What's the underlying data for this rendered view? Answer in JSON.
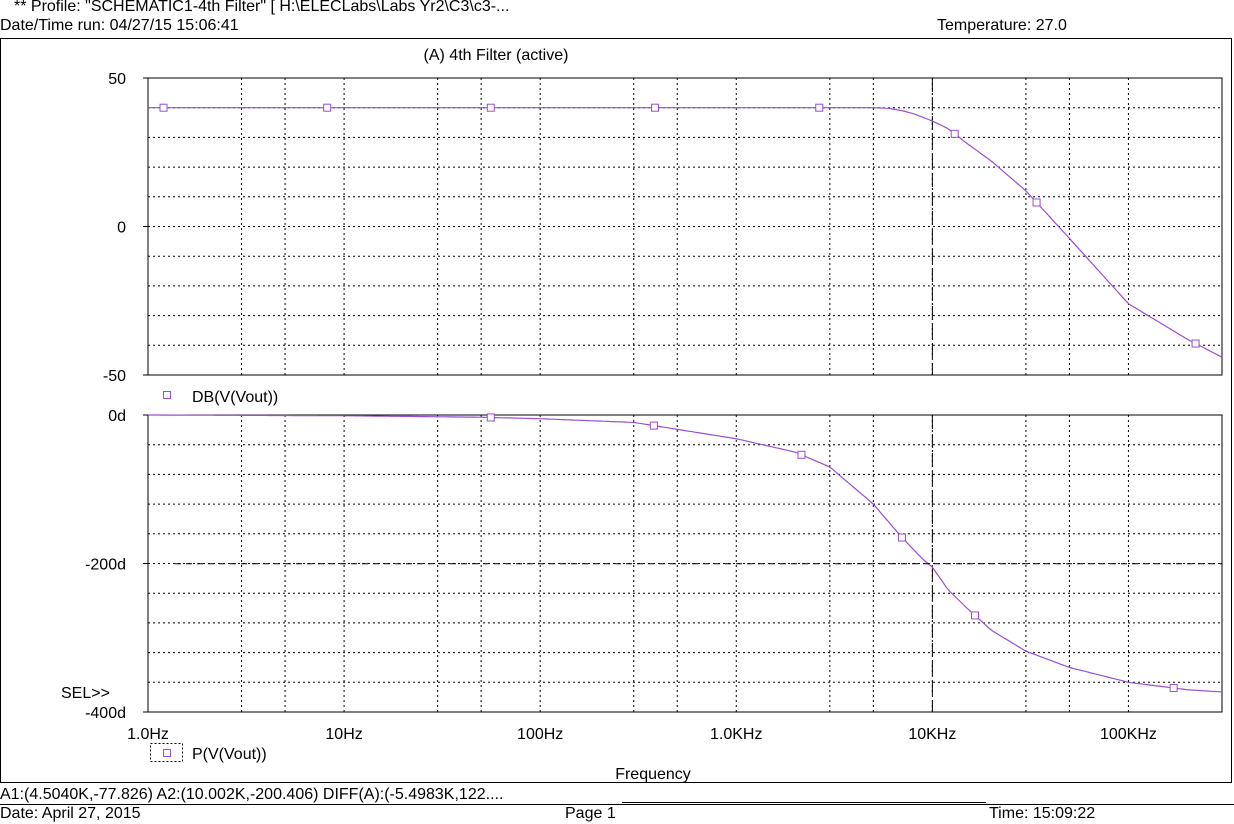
{
  "header": {
    "profile": "** Profile: \"SCHEMATIC1-4th Filter\"  [ H:\\ELECLabs\\Labs Yr2\\C3\\c3-...",
    "run_datetime": "Date/Time run: 04/27/15 15:06:41",
    "temperature": "Temperature: 27.0"
  },
  "footer": {
    "cursor_readout": "A1:(4.5040K,-77.826)  A2:(10.002K,-200.406)  DIFF(A):(-5.4983K,122....",
    "date": "Date: April 27, 2015",
    "page": "Page 1",
    "time": "Time: 15:09:22"
  },
  "chart_data": [
    {
      "type": "line",
      "title": "(A) 4th Filter (active)",
      "xscale": "log",
      "xlim": [
        1.0,
        300000
      ],
      "ylim": [
        -50,
        50
      ],
      "xlabel": "Frequency",
      "xticks": [
        1,
        10,
        100,
        1000,
        10000,
        100000
      ],
      "xtick_labels": [
        "1.0Hz",
        "10Hz",
        "100Hz",
        "1.0KHz",
        "10KHz",
        "100KHz"
      ],
      "yticks": [
        50,
        0,
        -50
      ],
      "ytick_labels": [
        "50",
        "0",
        "-50"
      ],
      "grid": true,
      "series": [
        {
          "name": "DB(V(Vout))",
          "color": "#9a4dd6",
          "marker": "square",
          "x": [
            1,
            1000,
            2000,
            3000,
            4000,
            5000,
            6000,
            7000,
            8000,
            10000,
            12000,
            15000,
            20000,
            30000,
            50000,
            100000,
            200000,
            300000
          ],
          "y": [
            40,
            40,
            40,
            40,
            40,
            40,
            39.8,
            39,
            38,
            35.5,
            33,
            28,
            22,
            12,
            -4,
            -26,
            -38,
            -44
          ],
          "marker_x": [
            1.2,
            8.2,
            56,
            385,
            2650,
            13000,
            34000,
            220000
          ]
        }
      ]
    },
    {
      "type": "line",
      "xscale": "log",
      "xlim": [
        1.0,
        300000
      ],
      "ylim": [
        -400,
        0
      ],
      "yticks": [
        0,
        -200,
        -400
      ],
      "ytick_labels": [
        "0d",
        "-200d",
        "-400d"
      ],
      "grid": true,
      "series": [
        {
          "name": "P(V(Vout))",
          "color": "#9a4dd6",
          "marker": "square",
          "x": [
            1,
            10,
            50,
            100,
            300,
            1000,
            2000,
            3000,
            5000,
            7000,
            9000,
            10000,
            12000,
            15000,
            20000,
            30000,
            50000,
            100000,
            200000,
            300000
          ],
          "y": [
            0,
            -1,
            -3,
            -5,
            -10,
            -32,
            -50,
            -70,
            -120,
            -165,
            -195,
            -205,
            -235,
            -260,
            -290,
            -318,
            -340,
            -360,
            -370,
            -373
          ],
          "marker_x": [
            56,
            380,
            2150,
            7000,
            16500,
            170000
          ]
        }
      ]
    }
  ],
  "cursor": {
    "a1_x": 4504,
    "a2_x": 10002,
    "a2_y": -200.406
  },
  "sel_label": "SEL>>"
}
